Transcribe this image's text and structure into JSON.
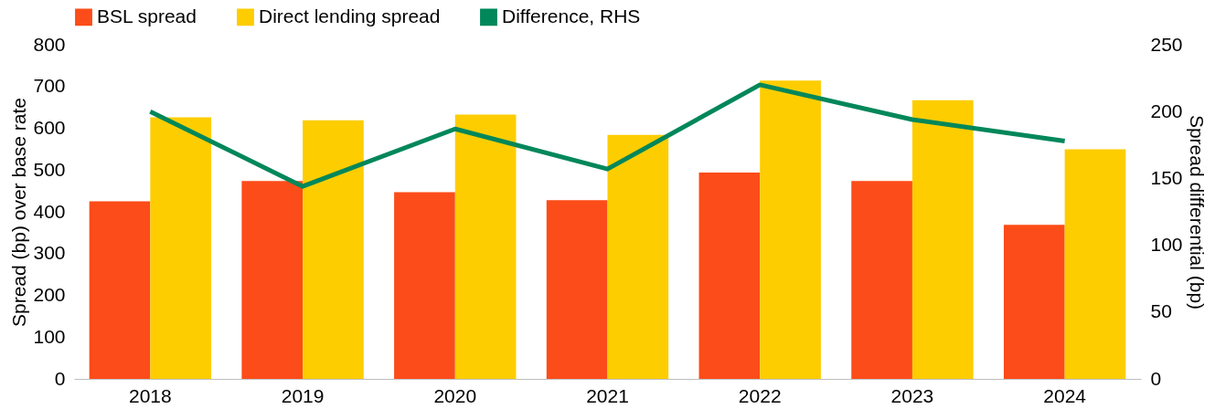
{
  "chart_data": {
    "type": "bar",
    "categories": [
      "2018",
      "2019",
      "2020",
      "2021",
      "2022",
      "2023",
      "2024"
    ],
    "ylabel": "Spread (bp) over base rate",
    "y2label": "Spread differential (bp)",
    "ylim": [
      0,
      800
    ],
    "yticks": [
      0,
      100,
      200,
      300,
      400,
      500,
      600,
      700,
      800
    ],
    "y2lim": [
      0,
      250
    ],
    "y2ticks": [
      0,
      50,
      100,
      150,
      200,
      250
    ],
    "legend": "top",
    "grid": false,
    "series": [
      {
        "name": "BSL spread",
        "color": "#fc4c19",
        "values": [
          425,
          474,
          447,
          428,
          494,
          474,
          369
        ]
      },
      {
        "name": "Direct lending spread",
        "color": "#fdcd00",
        "values": [
          626,
          619,
          633,
          584,
          714,
          667,
          550
        ]
      },
      {
        "name": "Difference, RHS",
        "color": "#00875a",
        "type": "line",
        "axis": "y2",
        "values": [
          200,
          144,
          187,
          157,
          220,
          194,
          178
        ]
      }
    ]
  }
}
